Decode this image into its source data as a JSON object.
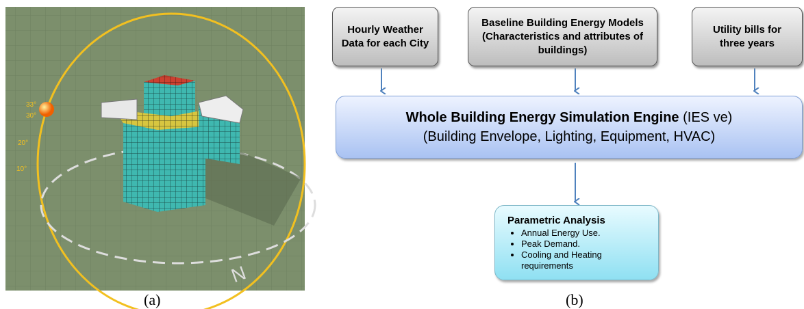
{
  "panel_a": {
    "labels": [
      "33°",
      "30°",
      "20°",
      "10°",
      "N"
    ],
    "caption": "(a)"
  },
  "panel_b": {
    "caption": "(b)",
    "nodes": [
      {
        "label": "Hourly Weather Data for each City"
      },
      {
        "label": "Baseline Building Energy Models (Characteristics and attributes of buildings)"
      },
      {
        "label": "Utility bills for three years"
      },
      {
        "title": "Whole Building Energy Simulation Engine",
        "title_note": "(IES ve)",
        "subtitle": "(Building Envelope, Lighting, Equipment, HVAC)"
      },
      {
        "title": "Parametric Analysis",
        "items": [
          "Annual Energy Use.",
          "Peak Demand.",
          "Cooling and Heating requirements"
        ]
      }
    ]
  }
}
